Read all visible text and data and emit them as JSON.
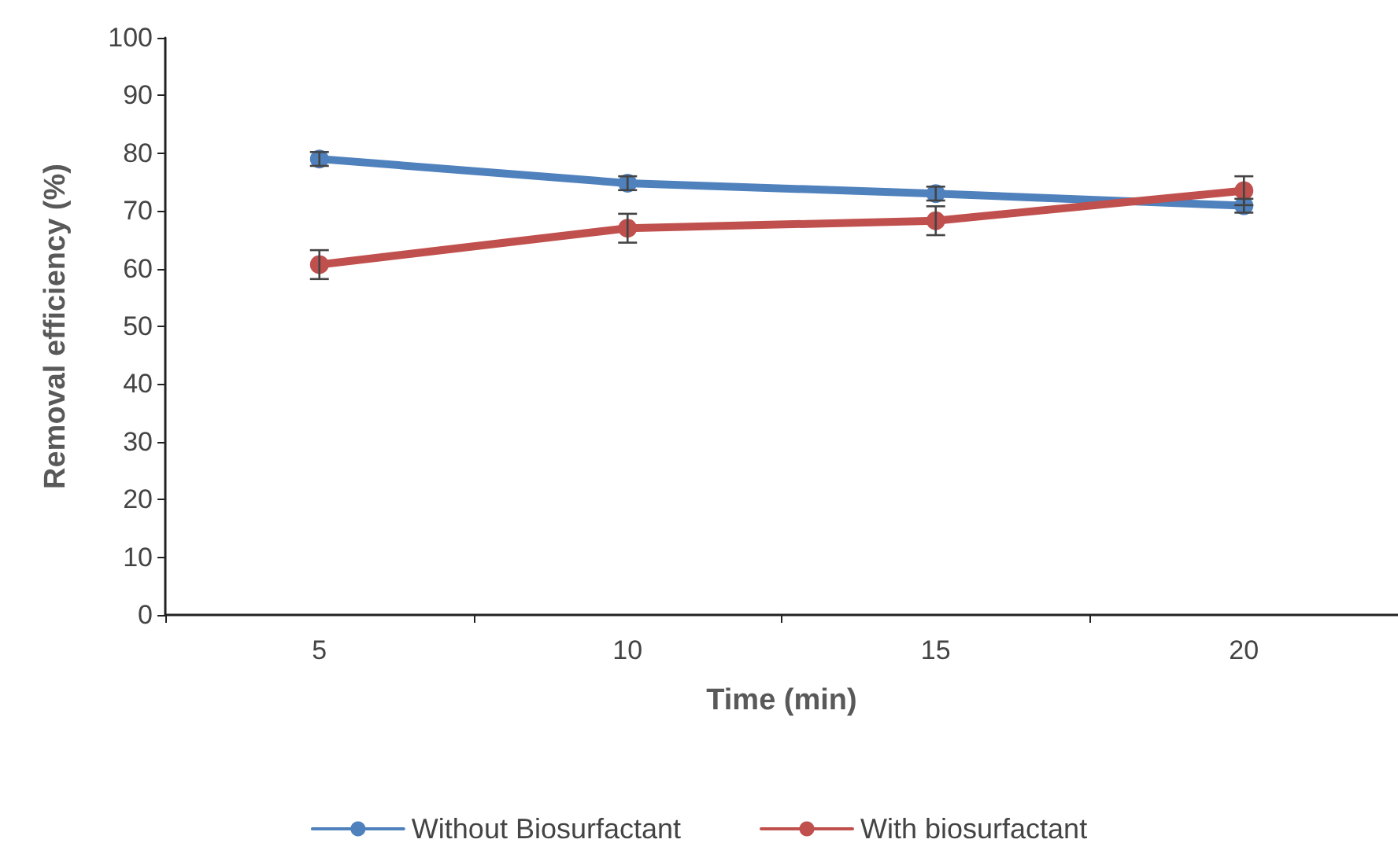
{
  "chart_data": {
    "type": "line",
    "xlabel": "Time (min)",
    "ylabel": "Removal efficiency (%)",
    "categories": [
      "5",
      "10",
      "15",
      "20"
    ],
    "ylim": [
      0,
      100
    ],
    "yticks": [
      0,
      10,
      20,
      30,
      40,
      50,
      60,
      70,
      80,
      90,
      100
    ],
    "grid": false,
    "legend": "bottom",
    "marker": "circle",
    "line_style": "solid",
    "series": [
      {
        "name": "Without Biosurfactant",
        "color": "#4f81bd",
        "values": [
          79,
          74.8,
          73,
          70.9
        ],
        "errors": [
          1.2,
          1.2,
          1.2,
          1.2
        ]
      },
      {
        "name": "With biosurfactant",
        "color": "#c0504d",
        "values": [
          60.7,
          67,
          68.3,
          73.5
        ],
        "errors": [
          2.5,
          2.5,
          2.5,
          2.5
        ]
      }
    ]
  }
}
